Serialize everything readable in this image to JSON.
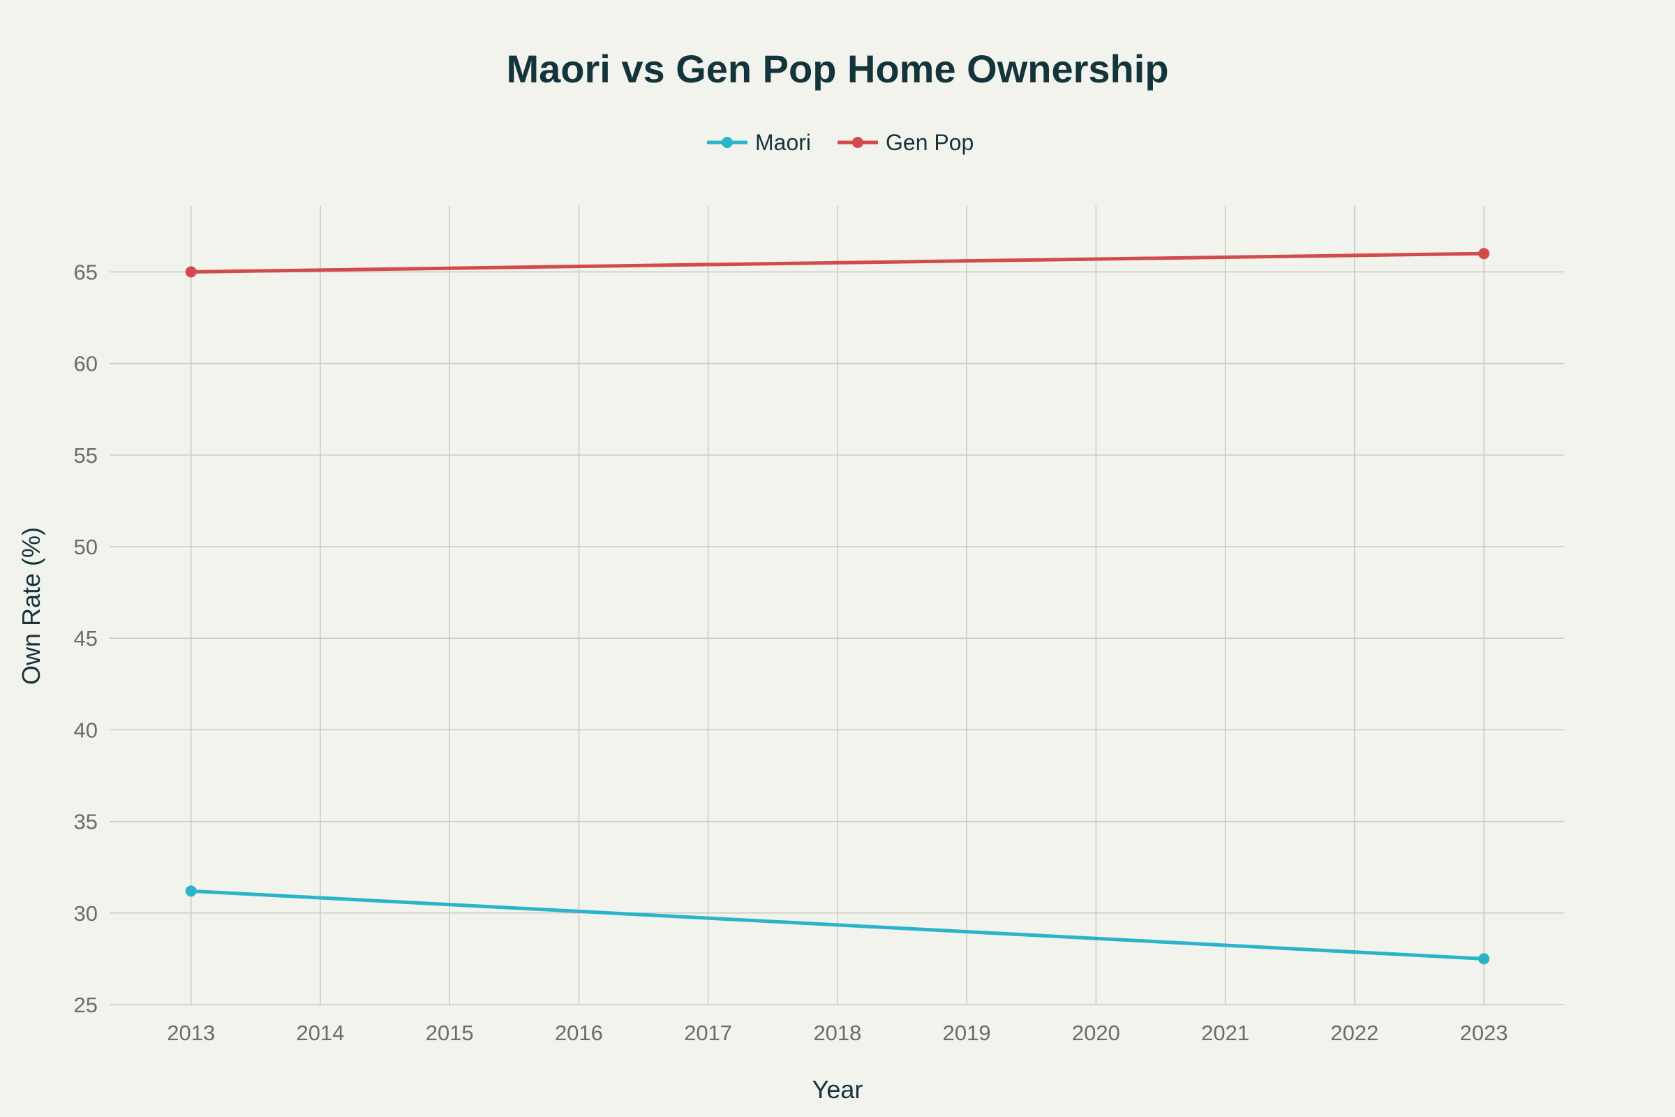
{
  "chart_data": {
    "type": "line",
    "title": "Maori vs Gen Pop Home Ownership",
    "xlabel": "Year",
    "ylabel": "Own Rate (%)",
    "x_ticks": [
      "2013",
      "2014",
      "2015",
      "2016",
      "2017",
      "2018",
      "2019",
      "2020",
      "2021",
      "2022",
      "2023"
    ],
    "xlim": [
      2012.37,
      2023.62
    ],
    "ylim": [
      25,
      68.6
    ],
    "y_ticks": [
      25,
      30,
      35,
      40,
      45,
      50,
      55,
      60,
      65
    ],
    "grid": true,
    "legend_position": "top-center",
    "series": [
      {
        "name": "Maori",
        "color": "#29b4c8",
        "x": [
          2013,
          2023
        ],
        "values": [
          31.2,
          27.5
        ]
      },
      {
        "name": "Gen Pop",
        "color": "#d34a4a",
        "x": [
          2013,
          2023
        ],
        "values": [
          65.0,
          66.0
        ]
      }
    ]
  }
}
